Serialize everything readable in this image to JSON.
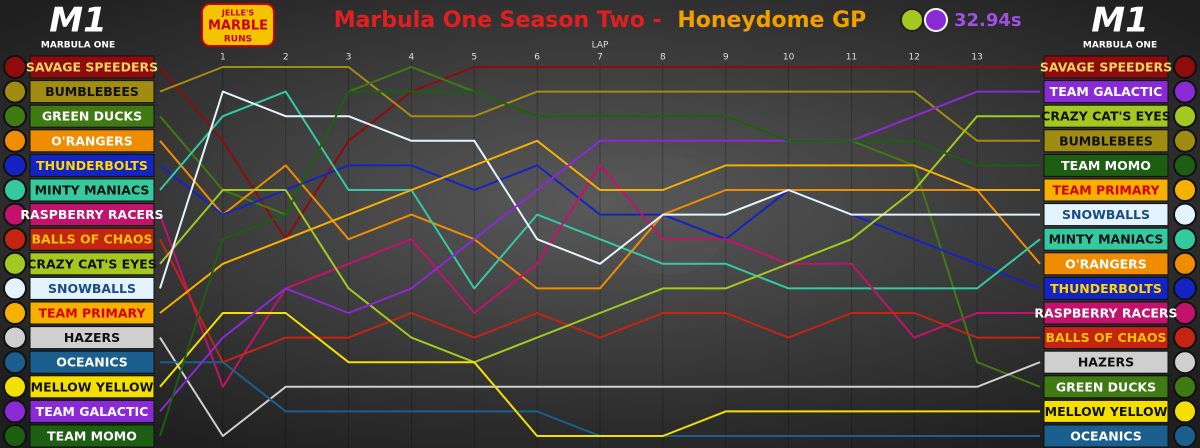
{
  "chart_data": {
    "type": "bump",
    "title_main": "Marbula One Season Two -",
    "title_event": "Honeydome GP",
    "fastest_lap": "32.94s",
    "logo_text": "MARBULA ONE",
    "logo_right_text": "MARBULA ONE",
    "brand_top": "JELLE'S",
    "brand_mid": "MARBLE",
    "brand_bottom": "RUNS",
    "xlabel": "LAP",
    "x": [
      0,
      1,
      2,
      3,
      4,
      5,
      6,
      7,
      8,
      9,
      10,
      11,
      12,
      13,
      14
    ],
    "xlim": [
      0,
      14
    ],
    "xticks": [
      1,
      2,
      3,
      4,
      5,
      6,
      7,
      8,
      9,
      10,
      11,
      12,
      13
    ],
    "ylim": [
      1,
      16
    ],
    "grid": true,
    "series": [
      {
        "name": "SAVAGE SPEEDERS",
        "color": "#8e0c0c",
        "text_color": "#f7d55a",
        "values": [
          1,
          4,
          8,
          4,
          2,
          1,
          1,
          1,
          1,
          1,
          1,
          1,
          1,
          1,
          1
        ]
      },
      {
        "name": "BUMBLEBEES",
        "color": "#a18c12",
        "text_color": "#111111",
        "values": [
          2,
          1,
          1,
          1,
          3,
          3,
          2,
          2,
          2,
          2,
          2,
          2,
          2,
          4,
          4
        ]
      },
      {
        "name": "GREEN DUCKS",
        "color": "#3f7a12",
        "text_color": "#ffffff",
        "values": [
          3,
          6,
          7,
          2,
          1,
          2,
          3,
          3,
          3,
          3,
          4,
          4,
          5,
          13,
          14
        ]
      },
      {
        "name": "O'RANGERS",
        "color": "#f08c00",
        "text_color": "#ffffff",
        "values": [
          4,
          7,
          5,
          8,
          7,
          8,
          10,
          10,
          7,
          6,
          6,
          6,
          6,
          6,
          9
        ]
      },
      {
        "name": "THUNDERBOLTS",
        "color": "#1424c4",
        "text_color": "#ffd800",
        "values": [
          5,
          7,
          6,
          5,
          5,
          6,
          5,
          7,
          7,
          8,
          6,
          7,
          8,
          9,
          10
        ]
      },
      {
        "name": "MINTY MANIACS",
        "color": "#34caa0",
        "text_color": "#111111",
        "values": [
          6,
          3,
          2,
          6,
          6,
          10,
          7,
          8,
          9,
          9,
          10,
          10,
          10,
          10,
          8
        ]
      },
      {
        "name": "RASPBERRY RACERS",
        "color": "#c2126c",
        "text_color": "#ffffff",
        "values": [
          7,
          14,
          10,
          9,
          8,
          11,
          9,
          5,
          8,
          8,
          9,
          9,
          12,
          11,
          11
        ]
      },
      {
        "name": "BALLS OF CHAOS",
        "color": "#c42412",
        "text_color": "#f6c400",
        "values": [
          8,
          13,
          12,
          12,
          11,
          12,
          11,
          12,
          11,
          11,
          12,
          11,
          11,
          12,
          12
        ]
      },
      {
        "name": "CRAZY CAT'S EYES",
        "color": "#a4c820",
        "text_color": "#111111",
        "values": [
          9,
          6,
          6,
          10,
          12,
          13,
          12,
          11,
          10,
          10,
          9,
          8,
          6,
          3,
          3
        ]
      },
      {
        "name": "SNOWBALLS",
        "color": "#e4f4ff",
        "text_color": "#1a4a8a",
        "values": [
          10,
          2,
          3,
          3,
          4,
          4,
          8,
          9,
          7,
          7,
          6,
          7,
          7,
          7,
          7
        ]
      },
      {
        "name": "TEAM PRIMARY",
        "color": "#f6b000",
        "text_color": "#d40000",
        "values": [
          11,
          9,
          8,
          7,
          6,
          5,
          4,
          6,
          6,
          5,
          5,
          5,
          5,
          6,
          6
        ]
      },
      {
        "name": "HAZERS",
        "color": "#cfcfcf",
        "text_color": "#111111",
        "values": [
          12,
          16,
          14,
          14,
          14,
          14,
          14,
          14,
          14,
          14,
          14,
          14,
          14,
          14,
          13
        ]
      },
      {
        "name": "OCEANICS",
        "color": "#1a5f8e",
        "text_color": "#ffffff",
        "values": [
          13,
          13,
          15,
          15,
          15,
          15,
          15,
          16,
          16,
          16,
          16,
          16,
          16,
          16,
          16
        ]
      },
      {
        "name": "MELLOW YELLOW",
        "color": "#f4e000",
        "text_color": "#111111",
        "values": [
          14,
          11,
          11,
          13,
          13,
          13,
          16,
          16,
          16,
          15,
          15,
          15,
          15,
          15,
          15
        ]
      },
      {
        "name": "TEAM GALACTIC",
        "color": "#8a2ad6",
        "text_color": "#ffffff",
        "values": [
          15,
          12,
          10,
          11,
          10,
          8,
          6,
          4,
          4,
          4,
          4,
          4,
          3,
          2,
          2
        ]
      },
      {
        "name": "TEAM MOMO",
        "color": "#1d5e12",
        "text_color": "#ffffff",
        "values": [
          16,
          8,
          7,
          2,
          2,
          2,
          3,
          3,
          3,
          3,
          4,
          4,
          4,
          5,
          5
        ]
      }
    ]
  }
}
